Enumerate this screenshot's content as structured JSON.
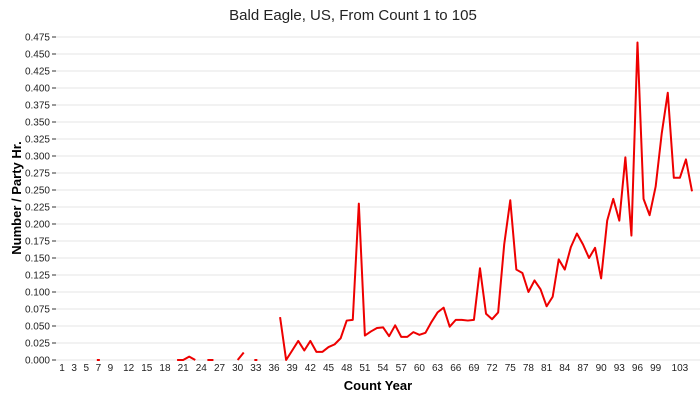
{
  "chart_data": {
    "type": "line",
    "title": "Bald Eagle, US,  From Count 1 to 105",
    "xlabel": "Count Year",
    "ylabel": "Number / Party Hr.",
    "xlim": [
      1,
      105
    ],
    "ylim": [
      0,
      0.475
    ],
    "grid": true,
    "legend": "none",
    "color": "#ee0000",
    "x_ticks": [
      1,
      3,
      5,
      7,
      9,
      12,
      15,
      18,
      21,
      24,
      27,
      30,
      33,
      36,
      39,
      42,
      45,
      48,
      51,
      54,
      57,
      60,
      63,
      66,
      69,
      72,
      75,
      78,
      81,
      84,
      87,
      90,
      93,
      96,
      99,
      103
    ],
    "y_ticks": [
      "0.000",
      "0.025",
      "0.050",
      "0.075",
      "0.100",
      "0.125",
      "0.150",
      "0.175",
      "0.200",
      "0.225",
      "0.250",
      "0.275",
      "0.300",
      "0.325",
      "0.350",
      "0.375",
      "0.400",
      "0.425",
      "0.450",
      "0.475"
    ],
    "series": [
      {
        "x": [
          7,
          20,
          21,
          22,
          23,
          25,
          26,
          30,
          31,
          33,
          37,
          38,
          39,
          40,
          41,
          42,
          43,
          44,
          45,
          46,
          47,
          48,
          49,
          50,
          51,
          52,
          53,
          54,
          55,
          56,
          57,
          58,
          59,
          60,
          61,
          62,
          63,
          64,
          65,
          66,
          67,
          68,
          69,
          70,
          71,
          72,
          73,
          74,
          75,
          76,
          77,
          78,
          79,
          80,
          81,
          82,
          83,
          84,
          85,
          86,
          87,
          88,
          89,
          90,
          91,
          92,
          93,
          94,
          95,
          96,
          97,
          98,
          99,
          100,
          101,
          102,
          103,
          104,
          105
        ],
        "y": [
          0,
          0,
          0,
          0.005,
          0,
          0,
          0,
          0,
          0.011,
          0,
          0.063,
          0,
          0.014,
          0.028,
          0.014,
          0.028,
          0.012,
          0.012,
          0.019,
          0.023,
          0.032,
          0.058,
          0.059,
          0.23,
          0.036,
          0.042,
          0.047,
          0.048,
          0.035,
          0.051,
          0.034,
          0.034,
          0.041,
          0.037,
          0.04,
          0.056,
          0.07,
          0.077,
          0.049,
          0.059,
          0.059,
          0.058,
          0.059,
          0.135,
          0.068,
          0.06,
          0.07,
          0.17,
          0.235,
          0.133,
          0.128,
          0.1,
          0.117,
          0.104,
          0.079,
          0.093,
          0.148,
          0.133,
          0.166,
          0.186,
          0.17,
          0.15,
          0.165,
          0.12,
          0.205,
          0.237,
          0.205,
          0.298,
          0.183,
          0.467,
          0.237,
          0.213,
          0.255,
          0.333,
          0.393,
          0.268,
          0.268,
          0.295,
          0.248
        ]
      }
    ]
  }
}
